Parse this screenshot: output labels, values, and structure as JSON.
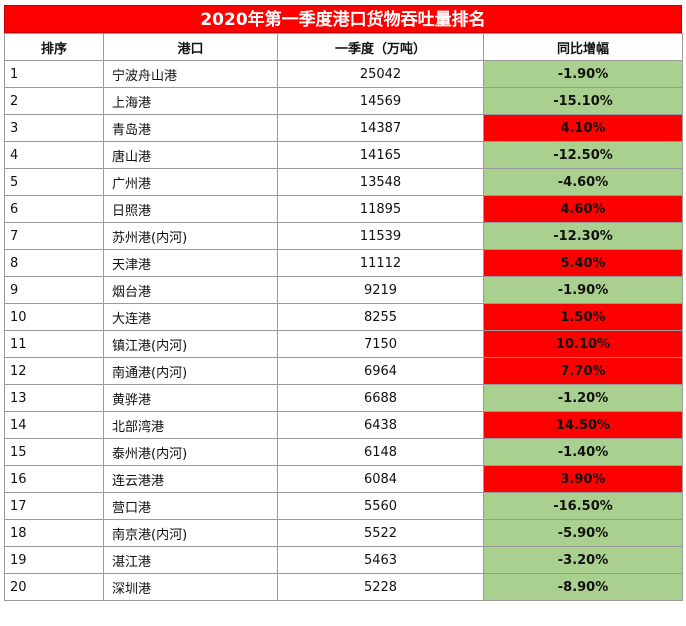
{
  "title": "2020年第一季度港口货物吞吐量排名",
  "headers": {
    "rank": "排序",
    "port": "港口",
    "volume": "一季度（万吨）",
    "change": "同比增幅"
  },
  "colors": {
    "title_bg": "#ff0000",
    "positive": "#ff0000",
    "negative": "#a9d08e"
  },
  "rows": [
    {
      "rank": "1",
      "port": "宁波舟山港",
      "volume": "25042",
      "change": "-1.90%",
      "trend": "neg"
    },
    {
      "rank": "2",
      "port": "上海港",
      "volume": "14569",
      "change": "-15.10%",
      "trend": "neg"
    },
    {
      "rank": "3",
      "port": "青岛港",
      "volume": "14387",
      "change": "4.10%",
      "trend": "pos"
    },
    {
      "rank": "4",
      "port": "唐山港",
      "volume": "14165",
      "change": "-12.50%",
      "trend": "neg"
    },
    {
      "rank": "5",
      "port": "广州港",
      "volume": "13548",
      "change": "-4.60%",
      "trend": "neg"
    },
    {
      "rank": "6",
      "port": "日照港",
      "volume": "11895",
      "change": "4.60%",
      "trend": "pos"
    },
    {
      "rank": "7",
      "port": "苏州港(内河)",
      "volume": "11539",
      "change": "-12.30%",
      "trend": "neg"
    },
    {
      "rank": "8",
      "port": "天津港",
      "volume": "11112",
      "change": "5.40%",
      "trend": "pos"
    },
    {
      "rank": "9",
      "port": "烟台港",
      "volume": "9219",
      "change": "-1.90%",
      "trend": "neg"
    },
    {
      "rank": "10",
      "port": "大连港",
      "volume": "8255",
      "change": "1.50%",
      "trend": "pos"
    },
    {
      "rank": "11",
      "port": "镇江港(内河)",
      "volume": "7150",
      "change": "10.10%",
      "trend": "pos"
    },
    {
      "rank": "12",
      "port": "南通港(内河)",
      "volume": "6964",
      "change": "7.70%",
      "trend": "pos"
    },
    {
      "rank": "13",
      "port": "黄骅港",
      "volume": "6688",
      "change": "-1.20%",
      "trend": "neg"
    },
    {
      "rank": "14",
      "port": "北部湾港",
      "volume": "6438",
      "change": "14.50%",
      "trend": "pos"
    },
    {
      "rank": "15",
      "port": "泰州港(内河)",
      "volume": "6148",
      "change": "-1.40%",
      "trend": "neg"
    },
    {
      "rank": "16",
      "port": "连云港港",
      "volume": "6084",
      "change": "3.90%",
      "trend": "pos"
    },
    {
      "rank": "17",
      "port": "营口港",
      "volume": "5560",
      "change": "-16.50%",
      "trend": "neg"
    },
    {
      "rank": "18",
      "port": "南京港(内河)",
      "volume": "5522",
      "change": "-5.90%",
      "trend": "neg"
    },
    {
      "rank": "19",
      "port": "湛江港",
      "volume": "5463",
      "change": "-3.20%",
      "trend": "neg"
    },
    {
      "rank": "20",
      "port": "深圳港",
      "volume": "5228",
      "change": "-8.90%",
      "trend": "neg"
    }
  ]
}
